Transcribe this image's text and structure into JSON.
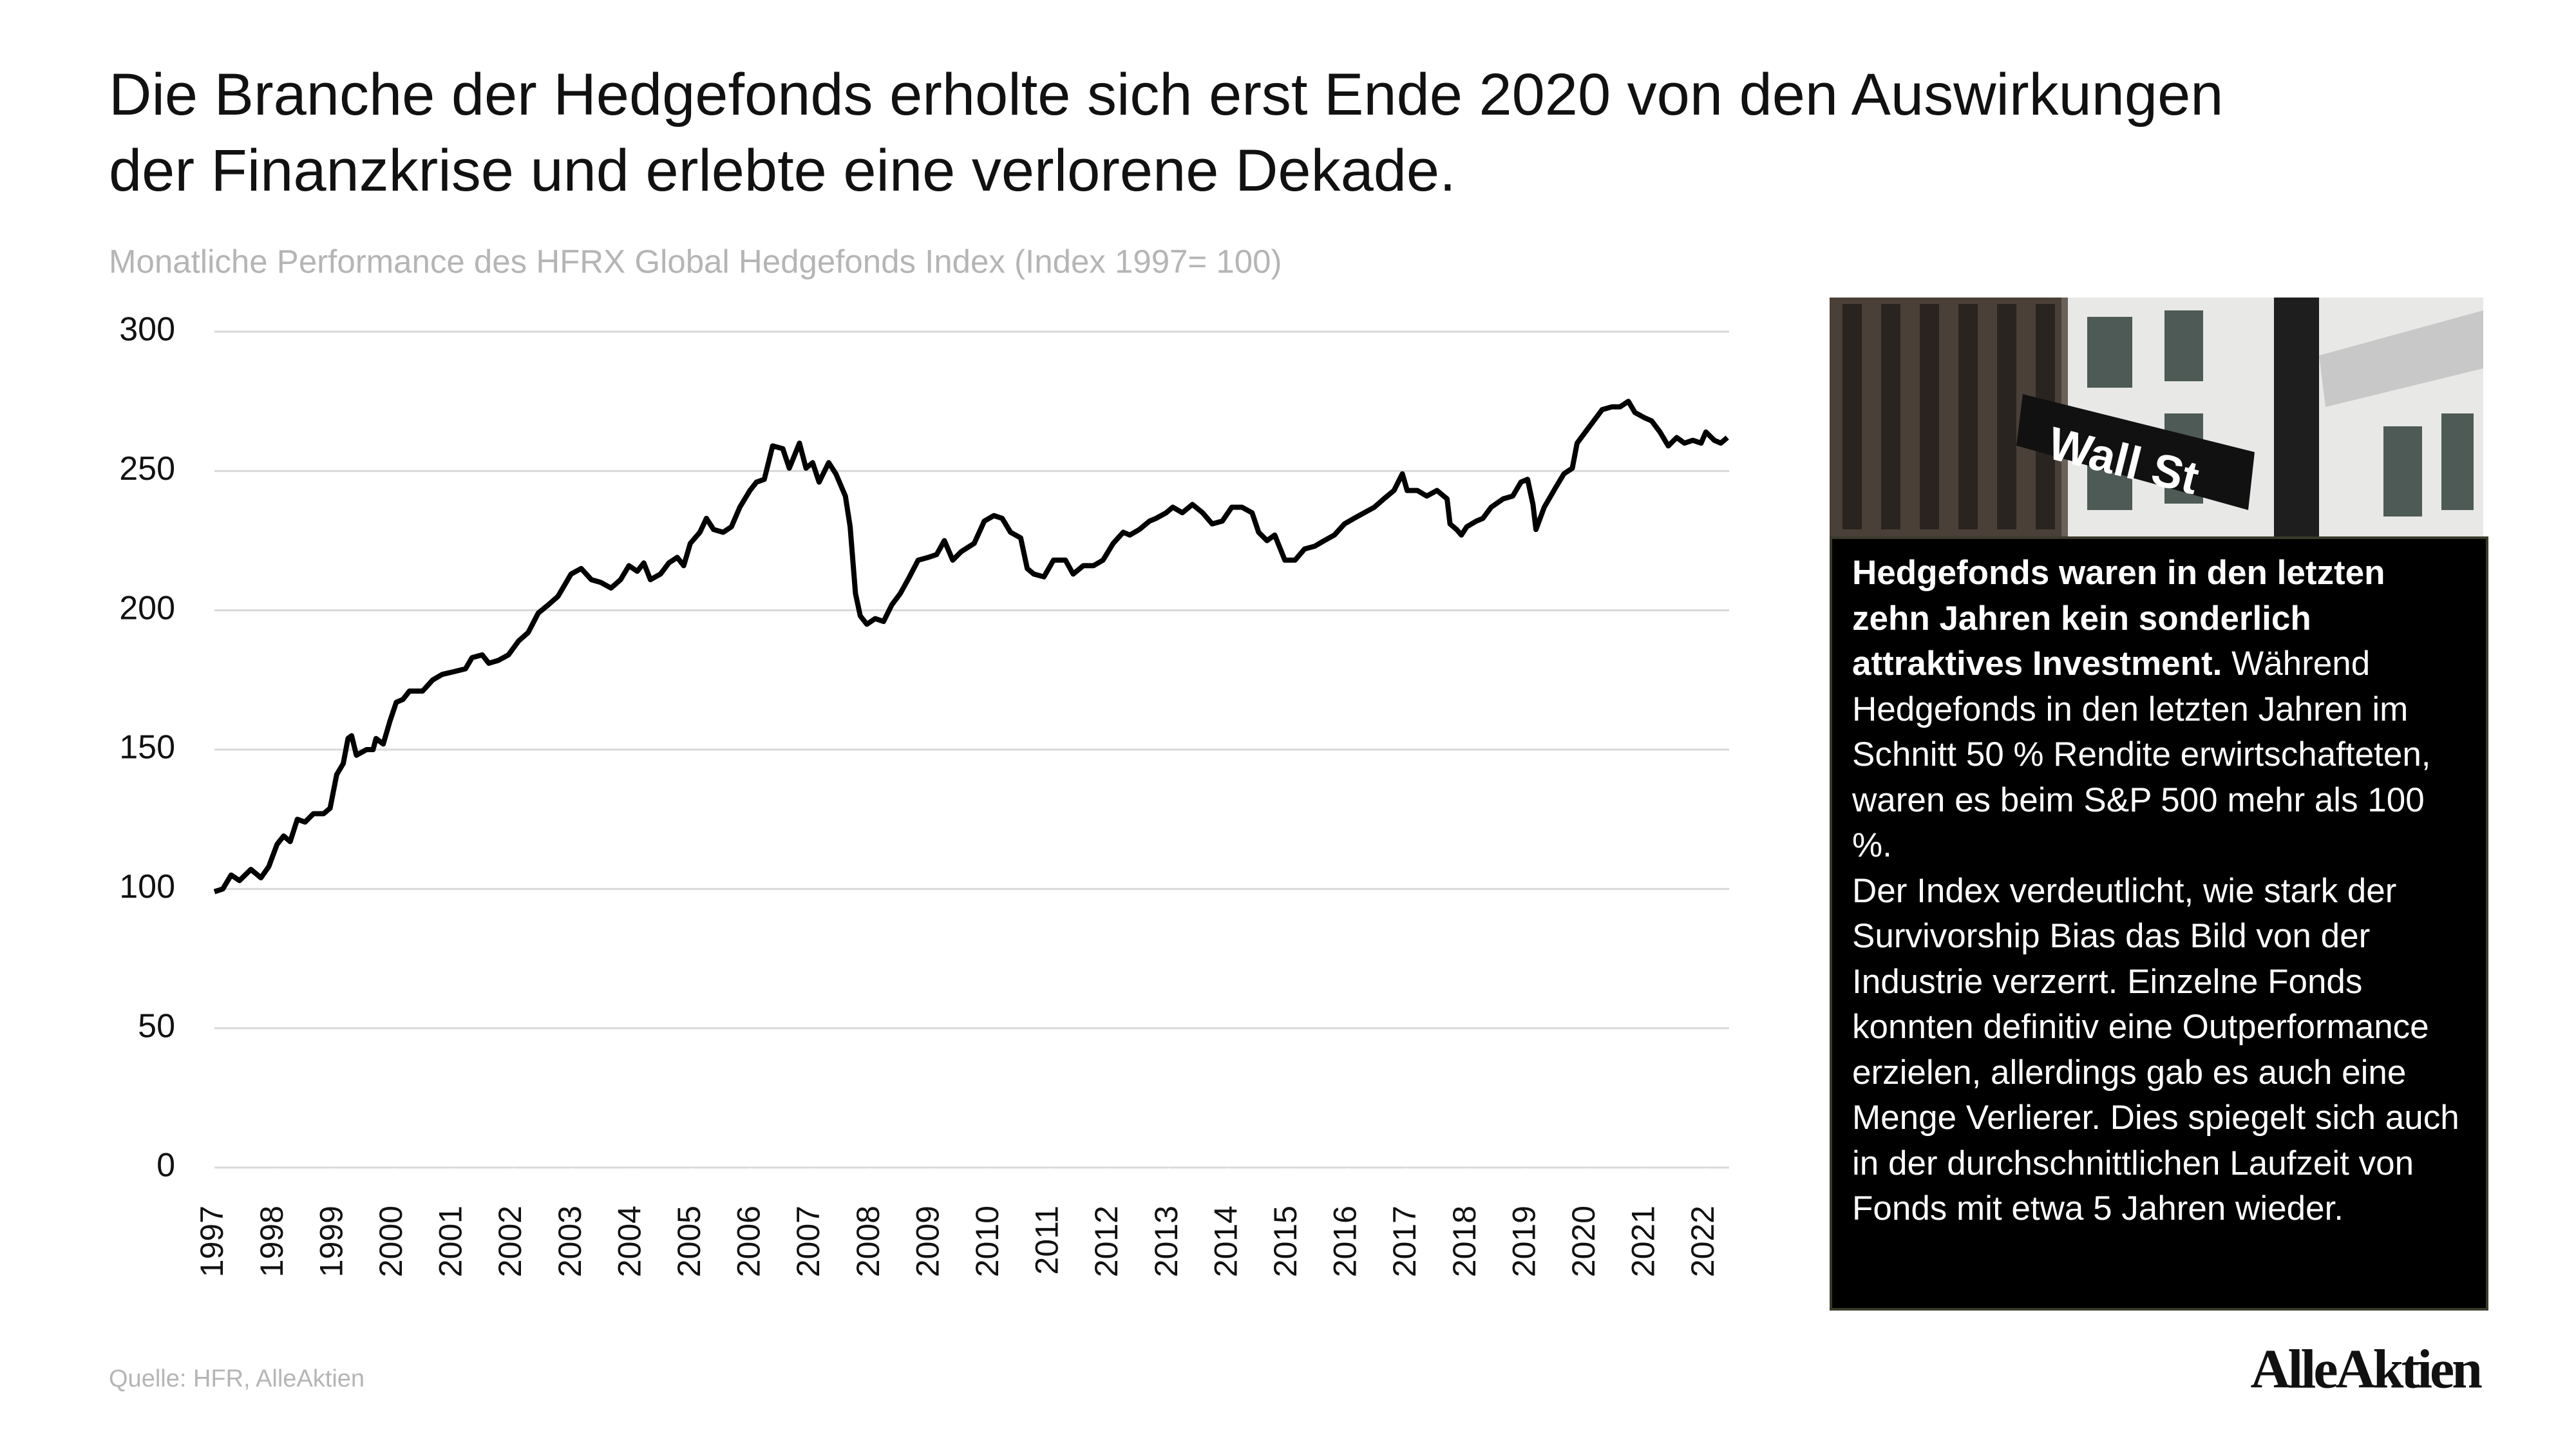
{
  "chart_data": {
    "type": "line",
    "title": "Die Branche der Hedgefonds erholte sich erst Ende 2020 von den Auswirkungen der Finanzkrise und erlebte eine verlorene Dekade.",
    "subtitle": "Monatliche Performance des HFRX Global Hedgefonds Index (Index 1997= 100)",
    "color": "#000000",
    "grid": true,
    "xlim": [
      1997,
      2022.4
    ],
    "xticks": [
      1997,
      1998,
      1999,
      2000,
      2001,
      2002,
      2003,
      2004,
      2005,
      2006,
      2007,
      2008,
      2009,
      2010,
      2011,
      2012,
      2013,
      2014,
      2015,
      2016,
      2017,
      2018,
      2019,
      2020,
      2021,
      2022
    ],
    "ylim": [
      0,
      300
    ],
    "yticks": [
      0,
      50,
      100,
      150,
      200,
      250,
      300
    ],
    "x": [
      1997.0,
      1997.14,
      1997.28,
      1997.42,
      1997.61,
      1997.78,
      1997.91,
      1998.05,
      1998.16,
      1998.27,
      1998.39,
      1998.52,
      1998.66,
      1998.83,
      1998.94,
      1999.05,
      1999.16,
      1999.24,
      1999.3,
      1999.38,
      1999.55,
      1999.66,
      1999.71,
      1999.83,
      1999.94,
      2000.05,
      2000.16,
      2000.27,
      2000.49,
      2000.66,
      2000.82,
      2001.02,
      2001.21,
      2001.32,
      2001.49,
      2001.6,
      2001.76,
      2001.93,
      2002.1,
      2002.26,
      2002.43,
      2002.6,
      2002.76,
      2002.87,
      2002.98,
      2003.15,
      2003.32,
      2003.48,
      2003.65,
      2003.81,
      2003.95,
      2004.09,
      2004.2,
      2004.31,
      2004.48,
      2004.62,
      2004.76,
      2004.87,
      2004.98,
      2005.14,
      2005.25,
      2005.37,
      2005.53,
      2005.67,
      2005.81,
      2005.98,
      2006.09,
      2006.22,
      2006.36,
      2006.53,
      2006.64,
      2006.81,
      2006.92,
      2007.03,
      2007.14,
      2007.3,
      2007.42,
      2007.58,
      2007.66,
      2007.75,
      2007.83,
      2007.94,
      2008.08,
      2008.22,
      2008.36,
      2008.5,
      2008.63,
      2008.8,
      2008.97,
      2009.11,
      2009.24,
      2009.38,
      2009.52,
      2009.74,
      2009.91,
      2010.07,
      2010.21,
      2010.35,
      2010.52,
      2010.63,
      2010.74,
      2010.91,
      2011.07,
      2011.27,
      2011.4,
      2011.57,
      2011.74,
      2011.9,
      2012.07,
      2012.24,
      2012.35,
      2012.51,
      2012.68,
      2012.79,
      2012.96,
      2013.07,
      2013.23,
      2013.4,
      2013.57,
      2013.73,
      2013.9,
      2014.06,
      2014.23,
      2014.4,
      2014.51,
      2014.65,
      2014.78,
      2014.95,
      2015.12,
      2015.28,
      2015.45,
      2015.61,
      2015.78,
      2015.95,
      2016.11,
      2016.28,
      2016.45,
      2016.61,
      2016.78,
      2016.92,
      2017.0,
      2017.17,
      2017.33,
      2017.5,
      2017.67,
      2017.72,
      2017.83,
      2017.91,
      2018.0,
      2018.16,
      2018.27,
      2018.41,
      2018.61,
      2018.77,
      2018.91,
      2019.02,
      2019.11,
      2019.16,
      2019.3,
      2019.49,
      2019.63,
      2019.77,
      2019.85,
      2019.99,
      2020.13,
      2020.27,
      2020.43,
      2020.57,
      2020.71,
      2020.82,
      2020.99,
      2021.1,
      2021.24,
      2021.38,
      2021.52,
      2021.65,
      2021.79,
      2021.93,
      2022.01,
      2022.15,
      2022.26,
      2022.37
    ],
    "values": [
      99,
      100,
      105,
      103,
      107,
      104,
      108,
      116,
      119,
      117,
      125,
      124,
      127,
      127,
      129,
      141,
      145,
      154,
      155,
      148,
      150,
      150,
      154,
      152,
      160,
      167,
      168,
      171,
      171,
      175,
      177,
      178,
      179,
      183,
      184,
      181,
      182,
      184,
      189,
      192,
      199,
      202,
      205,
      209,
      213,
      215,
      211,
      210,
      208,
      211,
      216,
      214,
      217,
      211,
      213,
      217,
      219,
      216,
      224,
      228,
      233,
      229,
      228,
      230,
      237,
      243,
      246,
      247,
      259,
      258,
      251,
      260,
      251,
      253,
      246,
      253,
      249,
      241,
      230,
      206,
      198,
      195,
      197,
      196,
      202,
      206,
      211,
      218,
      219,
      220,
      225,
      218,
      221,
      224,
      232,
      234,
      233,
      228,
      226,
      215,
      213,
      212,
      218,
      218,
      213,
      216,
      216,
      218,
      224,
      228,
      227,
      229,
      232,
      233,
      235,
      237,
      235,
      238,
      235,
      231,
      232,
      237,
      237,
      235,
      228,
      225,
      227,
      218,
      218,
      222,
      223,
      225,
      227,
      231,
      233,
      235,
      237,
      240,
      243,
      249,
      243,
      243,
      241,
      243,
      240,
      231,
      229,
      227,
      230,
      232,
      233,
      237,
      240,
      241,
      246,
      247,
      238,
      229,
      237,
      244,
      249,
      251,
      260,
      264,
      268,
      272,
      273,
      273,
      275,
      271,
      269,
      268,
      264,
      259,
      262,
      260,
      261,
      260,
      264,
      261,
      260,
      262
    ],
    "source": "Quelle: HFR, AlleAktien"
  },
  "note": {
    "highlight": "Hedgefonds waren in den letzten zehn Jahren kein sonderlich attraktives Investment.",
    "paragraphs": [
      " Während Hedgefonds in den letzten Jahren im Schnitt 50 % Rendite erwirtschafteten, waren es beim S&P 500 mehr als 100 %.",
      "Der Index verdeutlicht, wie stark der Survivorship Bias das Bild von der Industrie verzerrt. Einzelne Fonds konnten definitiv eine Outperformance erzielen, allerdings gab es auch eine Menge Verlierer. Dies spiegelt sich auch in der durchschnittlichen Laufzeit von Fonds mit etwa 5 Jahren wieder."
    ]
  },
  "photo": {
    "sign": "Wall St"
  },
  "brand": "AlleAktien"
}
